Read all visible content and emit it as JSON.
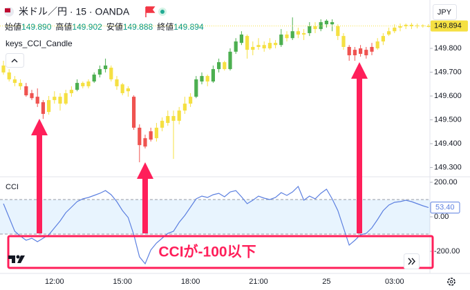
{
  "header": {
    "symbol": "米ドル／円 · 15 · OANDA",
    "currency": "JPY",
    "indicator": "keys_CCI_Candle",
    "ohlc": [
      {
        "label": "始値",
        "value": "149.890"
      },
      {
        "label": "高値",
        "value": "149.902"
      },
      {
        "label": "安値",
        "value": "149.888"
      },
      {
        "label": "終値",
        "value": "149.894"
      }
    ]
  },
  "annotation": {
    "text": "CCIが-100以下"
  },
  "chart_data": [
    {
      "type": "candlestick",
      "categories": [
        null,
        null,
        null,
        null,
        null,
        null,
        null,
        null,
        null,
        "12:00",
        null,
        null,
        null,
        null,
        null,
        null,
        null,
        null,
        null,
        null,
        null,
        "15:00",
        null,
        null,
        null,
        null,
        null,
        null,
        null,
        null,
        null,
        null,
        null,
        "18:00",
        null,
        null,
        null,
        null,
        null,
        null,
        null,
        null,
        null,
        null,
        null,
        "21:00",
        null,
        null,
        null,
        null,
        null,
        null,
        null,
        null,
        null,
        null,
        null,
        "25",
        null,
        null,
        null,
        null,
        null,
        null,
        null,
        null,
        null,
        null,
        null,
        "03:00",
        null,
        null,
        null,
        null,
        null,
        null
      ],
      "open": [
        149.728,
        149.699,
        149.67,
        149.655,
        149.641,
        149.612,
        149.597,
        149.574,
        149.533,
        149.583,
        149.597,
        149.568,
        149.612,
        149.626,
        149.655,
        149.641,
        149.661,
        149.69,
        149.713,
        149.719,
        149.67,
        149.649,
        149.62,
        149.597,
        149.467,
        149.423,
        149.452,
        149.423,
        149.467,
        149.487,
        149.516,
        149.496,
        149.539,
        149.568,
        149.597,
        149.661,
        149.684,
        149.661,
        149.713,
        149.742,
        149.713,
        149.786,
        149.823,
        149.852,
        149.794,
        149.806,
        149.814,
        149.8,
        149.823,
        149.814,
        149.858,
        149.843,
        149.872,
        149.858,
        149.864,
        149.893,
        149.881,
        149.901,
        149.91,
        149.893,
        149.852,
        149.806,
        149.794,
        149.8,
        149.794,
        149.806,
        149.8,
        149.829,
        149.858,
        149.872,
        149.887,
        149.893,
        149.899,
        149.893,
        149.896,
        149.89
      ],
      "high": [
        149.748,
        149.713,
        149.684,
        149.67,
        149.655,
        149.626,
        149.632,
        149.583,
        149.6,
        149.62,
        149.612,
        149.626,
        149.641,
        149.67,
        149.661,
        149.67,
        149.699,
        149.728,
        149.757,
        149.728,
        149.684,
        149.655,
        149.641,
        149.603,
        149.481,
        149.438,
        149.467,
        149.487,
        149.51,
        149.539,
        149.539,
        149.554,
        149.597,
        149.612,
        149.684,
        149.699,
        149.69,
        149.728,
        149.757,
        149.748,
        149.8,
        149.843,
        149.872,
        149.858,
        149.829,
        149.843,
        149.829,
        149.843,
        149.835,
        149.881,
        149.872,
        149.93,
        149.887,
        149.881,
        149.91,
        149.91,
        149.922,
        149.922,
        149.922,
        149.901,
        149.864,
        149.814,
        149.806,
        149.814,
        149.806,
        149.823,
        149.843,
        149.864,
        149.887,
        149.901,
        149.904,
        149.904,
        149.907,
        149.904,
        149.901,
        149.902
      ],
      "low": [
        149.69,
        149.661,
        149.641,
        149.626,
        149.597,
        149.583,
        149.554,
        149.504,
        149.522,
        149.568,
        149.539,
        149.562,
        149.597,
        149.62,
        149.632,
        149.632,
        149.655,
        149.678,
        149.699,
        149.661,
        149.626,
        149.603,
        149.597,
        149.458,
        149.322,
        149.38,
        149.409,
        149.409,
        149.452,
        149.475,
        149.336,
        149.481,
        149.525,
        149.554,
        149.591,
        149.649,
        149.641,
        149.655,
        149.699,
        149.707,
        149.707,
        149.777,
        149.814,
        149.757,
        149.771,
        149.794,
        149.786,
        149.794,
        149.8,
        149.806,
        149.829,
        149.835,
        149.843,
        149.835,
        149.852,
        149.864,
        149.872,
        149.887,
        149.872,
        149.835,
        149.794,
        149.748,
        149.748,
        149.765,
        149.757,
        149.771,
        149.794,
        149.814,
        149.852,
        149.864,
        149.872,
        149.881,
        149.881,
        149.884,
        149.887,
        149.888
      ],
      "close": [
        149.699,
        149.67,
        149.655,
        149.641,
        149.603,
        149.591,
        149.568,
        149.525,
        149.583,
        149.597,
        149.568,
        149.612,
        149.626,
        149.655,
        149.641,
        149.661,
        149.69,
        149.713,
        149.728,
        149.67,
        149.641,
        149.612,
        149.632,
        149.467,
        149.394,
        149.388,
        149.417,
        149.467,
        149.496,
        149.516,
        149.496,
        149.539,
        149.568,
        149.597,
        149.67,
        149.684,
        149.661,
        149.713,
        149.742,
        149.713,
        149.786,
        149.829,
        149.858,
        149.794,
        149.806,
        149.814,
        149.8,
        149.823,
        149.814,
        149.858,
        149.843,
        149.872,
        149.858,
        149.864,
        149.893,
        149.881,
        149.91,
        149.916,
        149.901,
        149.852,
        149.806,
        149.771,
        149.771,
        149.777,
        149.771,
        149.786,
        149.829,
        149.852,
        149.872,
        149.887,
        149.893,
        149.899,
        149.893,
        149.896,
        149.893,
        149.894
      ],
      "colors": [
        "#f5e042",
        "#f5e042",
        "#f5e042",
        "#f5e042",
        "#ef5350",
        "#ef5350",
        "#ef5350",
        "#ef5350",
        "#f5e042",
        "#f5e042",
        "#f5e042",
        "#f5e042",
        "#f5e042",
        "#4caf50",
        "#f5e042",
        "#f5e042",
        "#4caf50",
        "#4caf50",
        "#4caf50",
        "#f5e042",
        "#f5e042",
        "#f5e042",
        "#f5e042",
        "#ef5350",
        "#ef5350",
        "#ef5350",
        "#ef5350",
        "#f5e042",
        "#f5e042",
        "#f5e042",
        "#f5e042",
        "#f5e042",
        "#f5e042",
        "#f5e042",
        "#4caf50",
        "#4caf50",
        "#f5e042",
        "#4caf50",
        "#4caf50",
        "#f5e042",
        "#4caf50",
        "#4caf50",
        "#4caf50",
        "#f5e042",
        "#f5e042",
        "#f5e042",
        "#f5e042",
        "#f5e042",
        "#f5e042",
        "#4caf50",
        "#f5e042",
        "#4caf50",
        "#f5e042",
        "#f5e042",
        "#4caf50",
        "#f5e042",
        "#4caf50",
        "#4caf50",
        "#4caf50",
        "#f5e042",
        "#f5e042",
        "#ef5350",
        "#ef5350",
        "#ef5350",
        "#ef5350",
        "#ef5350",
        "#f5e042",
        "#f5e042",
        "#f5e042",
        "#f5e042",
        "#f5e042",
        "#f5e042",
        "#f5e042",
        "#f5e042",
        "#f5e042",
        "#f5e042"
      ],
      "ylim": [
        149.264,
        150.003
      ],
      "yticks": [
        {
          "value": 149.3,
          "label": "149.300"
        },
        {
          "value": 149.4,
          "label": "149.400"
        },
        {
          "value": 149.5,
          "label": "149.500"
        },
        {
          "value": 149.6,
          "label": "149.600"
        },
        {
          "value": 149.7,
          "label": "149.700"
        },
        {
          "value": 149.8,
          "label": "149.800"
        }
      ],
      "last_label": "149.894"
    },
    {
      "type": "line",
      "title": "CCI",
      "color": "#5b7fe0",
      "values": [
        76,
        -4,
        -84,
        -112,
        -136,
        -124,
        -144,
        -124,
        -104,
        -64,
        -24,
        24,
        56,
        88,
        104,
        112,
        124,
        136,
        152,
        128,
        88,
        36,
        -4,
        -104,
        -232,
        -272,
        -192,
        -152,
        -124,
        -96,
        -84,
        -32,
        8,
        56,
        104,
        120,
        112,
        128,
        136,
        116,
        144,
        152,
        116,
        76,
        96,
        120,
        108,
        100,
        112,
        140,
        124,
        144,
        176,
        96,
        120,
        104,
        136,
        160,
        104,
        36,
        -64,
        -164,
        -136,
        -104,
        -96,
        -64,
        -16,
        36,
        68,
        84,
        88,
        96,
        88,
        76,
        64,
        53.4
      ],
      "ylim": [
        -324,
        224
      ],
      "yticks": [
        {
          "value": -200,
          "label": "-200.00"
        },
        {
          "value": 0,
          "label": "0.00"
        },
        {
          "value": 200,
          "label": "200.00"
        }
      ],
      "bands": [
        -100,
        100
      ],
      "last_label": "53.40"
    }
  ]
}
